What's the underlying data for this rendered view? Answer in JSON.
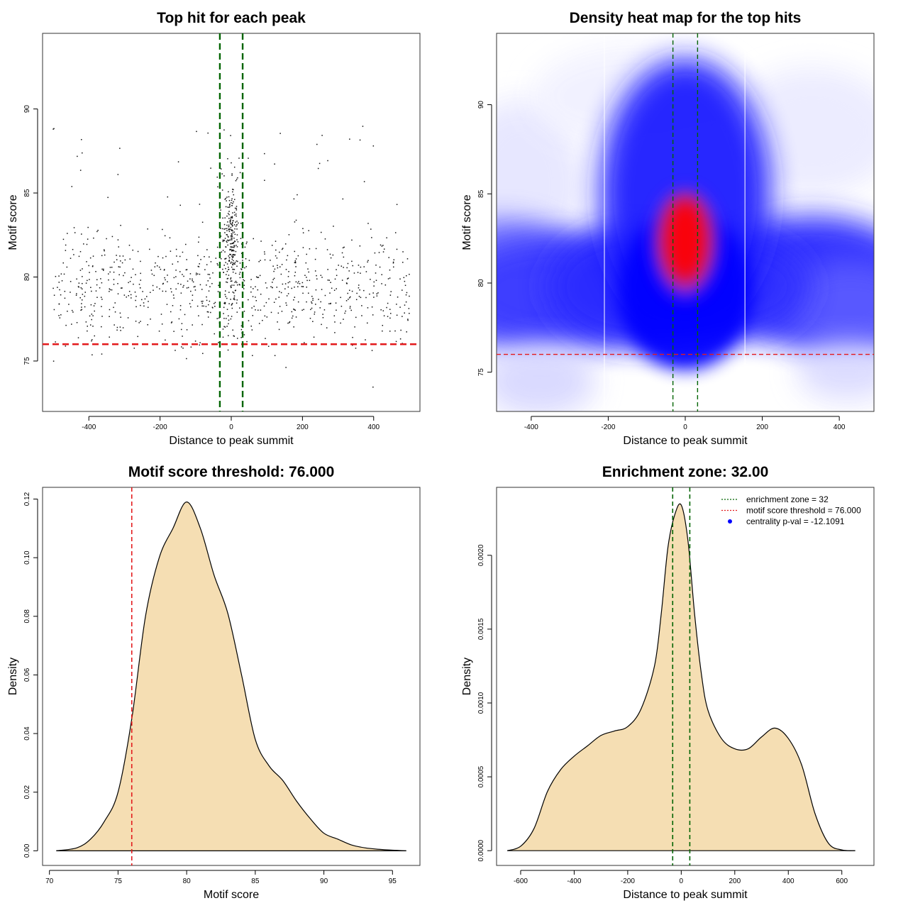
{
  "chart_data": [
    {
      "type": "scatter",
      "title": "Top hit for each peak",
      "xlabel": "Distance to peak summit",
      "ylabel": "Motif score",
      "xlim": [
        -530,
        530
      ],
      "ylim": [
        72,
        94.5
      ],
      "xticks": [
        -400,
        -200,
        0,
        200,
        400
      ],
      "yticks": [
        75,
        80,
        85,
        90
      ],
      "points_description": "about 1000 top hits, scores mostly between 73 and 89, concentrated near distance 0",
      "threshold_line": {
        "y": 76,
        "color": "#e31a1c"
      },
      "zone_lines": {
        "x": [
          -32,
          32
        ],
        "color": "#006400"
      }
    },
    {
      "type": "heatmap",
      "title": "Density heat map for the top hits",
      "xlabel": "Distance to peak summit",
      "ylabel": "Motif score",
      "xlim": [
        -490,
        490
      ],
      "ylim": [
        72.8,
        94
      ],
      "xticks": [
        -400,
        -200,
        0,
        200,
        400
      ],
      "yticks": [
        75,
        80,
        85,
        90
      ],
      "hotspot": {
        "x": 0,
        "y": 82.5
      },
      "threshold_line": {
        "y": 76,
        "color": "#e31a1c"
      },
      "zone_lines": {
        "x": [
          -32,
          32
        ],
        "color": "#006400"
      }
    },
    {
      "type": "area",
      "title": "Motif score threshold: 76.000",
      "xlabel": "Motif score",
      "ylabel": "Density",
      "xlim": [
        69.5,
        97
      ],
      "ylim": [
        -0.005,
        0.124
      ],
      "xticks": [
        70,
        75,
        80,
        85,
        90,
        95
      ],
      "yticks": [
        "0.00",
        "0.02",
        "0.04",
        "0.06",
        "0.08",
        "0.10",
        "0.12"
      ],
      "x": [
        70.5,
        72,
        73,
        74,
        75,
        76,
        77,
        78,
        79,
        80,
        81,
        82,
        83,
        84,
        85,
        86,
        87,
        88,
        89,
        90,
        91,
        92,
        93,
        94,
        95,
        96
      ],
      "y": [
        0,
        0.001,
        0.004,
        0.01,
        0.02,
        0.045,
        0.08,
        0.1,
        0.11,
        0.119,
        0.11,
        0.094,
        0.081,
        0.06,
        0.038,
        0.029,
        0.024,
        0.017,
        0.011,
        0.006,
        0.004,
        0.002,
        0.001,
        0.0005,
        0.0002,
        0
      ],
      "fill": "#f5deb3",
      "threshold_line": {
        "x": 76,
        "color": "#e31a1c"
      }
    },
    {
      "type": "area",
      "title": "Enrichment zone: 32.00",
      "xlabel": "Distance to peak summit",
      "ylabel": "Density",
      "xlim": [
        -690,
        720
      ],
      "ylim": [
        -0.0001,
        0.00246
      ],
      "xticks": [
        -600,
        -400,
        -200,
        0,
        200,
        400,
        600
      ],
      "yticks": [
        "0.0000",
        "0.0005",
        "0.0010",
        "0.0015",
        "0.0020"
      ],
      "x": [
        -650,
        -600,
        -550,
        -500,
        -450,
        -400,
        -350,
        -300,
        -250,
        -200,
        -150,
        -100,
        -75,
        -50,
        -25,
        0,
        25,
        50,
        75,
        100,
        150,
        200,
        250,
        300,
        350,
        400,
        450,
        500,
        550,
        600,
        650
      ],
      "y": [
        0,
        3e-05,
        0.00015,
        0.0004,
        0.00055,
        0.00064,
        0.00071,
        0.00078,
        0.00081,
        0.00084,
        0.00096,
        0.00125,
        0.0016,
        0.00205,
        0.00227,
        0.00234,
        0.0021,
        0.0016,
        0.0012,
        0.00095,
        0.00076,
        0.00069,
        0.00069,
        0.00077,
        0.00083,
        0.00076,
        0.00058,
        0.00025,
        5e-05,
        5e-06,
        0
      ],
      "fill": "#f5deb3",
      "zone_lines": {
        "x": [
          -32,
          32
        ],
        "color": "#006400"
      },
      "legend": {
        "position": "top-right",
        "entries": [
          {
            "label": "enrichment zone = 32",
            "color": "#006400",
            "marker": "dotted-line"
          },
          {
            "label": "motif score threshold = 76.000",
            "color": "#e31a1c",
            "marker": "dotted-line"
          },
          {
            "label": "centrality p-val = -12.1091",
            "color": "#0000ff",
            "marker": "dot"
          }
        ]
      }
    }
  ]
}
